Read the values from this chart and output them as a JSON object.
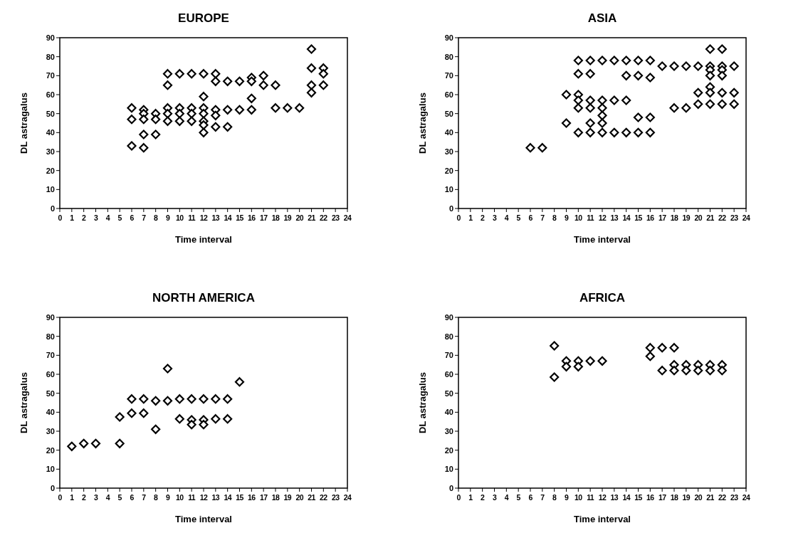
{
  "chart_data": [
    {
      "type": "scatter",
      "title": "EUROPE",
      "xlabel": "Time interval",
      "ylabel": "DL astragalus",
      "marker": "diamond",
      "xlim": [
        0,
        24
      ],
      "ylim": [
        0,
        90
      ],
      "xticks": [
        0,
        1,
        2,
        3,
        4,
        5,
        6,
        7,
        8,
        9,
        10,
        11,
        12,
        13,
        14,
        15,
        16,
        17,
        18,
        19,
        20,
        21,
        22,
        23,
        24
      ],
      "yticks": [
        0,
        10,
        20,
        30,
        40,
        50,
        60,
        70,
        80,
        90
      ],
      "series": [
        {
          "color": "#000000",
          "x": [
            6,
            6,
            6,
            7,
            7,
            7,
            7,
            7,
            8,
            8,
            8,
            9,
            9,
            9,
            9,
            9,
            10,
            10,
            10,
            10,
            11,
            11,
            11,
            11,
            12,
            12,
            12,
            12,
            12,
            12,
            12,
            13,
            13,
            13,
            13,
            13,
            14,
            14,
            14,
            15,
            15,
            16,
            16,
            16,
            16,
            17,
            17,
            18,
            18,
            19,
            20,
            21,
            21,
            21,
            21,
            22,
            22,
            22
          ],
          "values": [
            53,
            47,
            33,
            52,
            50,
            47,
            39,
            32,
            50,
            47,
            39,
            71,
            65,
            53,
            50,
            46,
            71,
            53,
            50,
            46,
            71,
            53,
            50,
            46,
            71,
            59,
            53,
            50,
            46,
            44,
            40,
            71,
            67,
            52,
            49,
            43,
            67,
            52,
            43,
            67,
            52,
            69,
            67,
            58,
            52,
            70,
            65,
            65,
            53,
            53,
            53,
            84,
            74,
            65,
            61,
            74,
            71,
            65
          ]
        }
      ]
    },
    {
      "type": "scatter",
      "title": "ASIA",
      "xlabel": "Time interval",
      "ylabel": "DL astragalus",
      "marker": "diamond",
      "xlim": [
        0,
        24
      ],
      "ylim": [
        0,
        90
      ],
      "xticks": [
        0,
        1,
        2,
        3,
        4,
        5,
        6,
        7,
        8,
        9,
        10,
        11,
        12,
        13,
        14,
        15,
        16,
        17,
        18,
        19,
        20,
        21,
        22,
        23,
        24
      ],
      "yticks": [
        0,
        10,
        20,
        30,
        40,
        50,
        60,
        70,
        80,
        90
      ],
      "series": [
        {
          "color": "#000000",
          "x": [
            6,
            7,
            9,
            9,
            10,
            10,
            10,
            10,
            10,
            10,
            11,
            11,
            11,
            11,
            11,
            11,
            12,
            12,
            12,
            12,
            12,
            12,
            13,
            13,
            13,
            14,
            14,
            14,
            14,
            15,
            15,
            15,
            15,
            16,
            16,
            16,
            16,
            17,
            18,
            18,
            19,
            19,
            20,
            20,
            20,
            21,
            21,
            21,
            21,
            21,
            21,
            21,
            22,
            22,
            22,
            22,
            22,
            22,
            23,
            23,
            23
          ],
          "values": [
            32,
            32,
            60,
            45,
            78,
            71,
            60,
            57,
            53,
            40,
            78,
            71,
            57,
            53,
            45,
            40,
            78,
            57,
            53,
            49,
            45,
            40,
            78,
            57,
            40,
            78,
            70,
            57,
            40,
            78,
            70,
            48,
            40,
            78,
            69,
            48,
            40,
            75,
            75,
            53,
            75,
            53,
            75,
            61,
            55,
            84,
            75,
            73,
            70,
            64,
            61,
            55,
            84,
            75,
            73,
            70,
            61,
            55,
            75,
            61,
            55
          ]
        }
      ]
    },
    {
      "type": "scatter",
      "title": "NORTH AMERICA",
      "xlabel": "Time interval",
      "ylabel": "DL astragalus",
      "marker": "diamond",
      "xlim": [
        0,
        24
      ],
      "ylim": [
        0,
        90
      ],
      "xticks": [
        0,
        1,
        2,
        3,
        4,
        5,
        6,
        7,
        8,
        9,
        10,
        11,
        12,
        13,
        14,
        15,
        16,
        17,
        18,
        19,
        20,
        21,
        22,
        23,
        24
      ],
      "yticks": [
        0,
        10,
        20,
        30,
        40,
        50,
        60,
        70,
        80,
        90
      ],
      "series": [
        {
          "color": "#000000",
          "x": [
            1,
            2,
            3,
            5,
            5,
            6,
            6,
            7,
            7,
            8,
            8,
            9,
            9,
            10,
            10,
            11,
            11,
            11,
            12,
            12,
            12,
            13,
            13,
            14,
            14,
            15
          ],
          "values": [
            22,
            23.5,
            23.5,
            37.5,
            23.5,
            47,
            39.5,
            47,
            39.5,
            46,
            31,
            63,
            46,
            47,
            36.5,
            47,
            36,
            33.5,
            47,
            36,
            33.5,
            47,
            36.5,
            47,
            36.5,
            56
          ]
        }
      ]
    },
    {
      "type": "scatter",
      "title": "AFRICA",
      "xlabel": "Time interval",
      "ylabel": "DL astragalus",
      "marker": "diamond",
      "xlim": [
        0,
        24
      ],
      "ylim": [
        0,
        90
      ],
      "xticks": [
        0,
        1,
        2,
        3,
        4,
        5,
        6,
        7,
        8,
        9,
        10,
        11,
        12,
        13,
        14,
        15,
        16,
        17,
        18,
        19,
        20,
        21,
        22,
        23,
        24
      ],
      "yticks": [
        0,
        10,
        20,
        30,
        40,
        50,
        60,
        70,
        80,
        90
      ],
      "series": [
        {
          "color": "#000000",
          "x": [
            8,
            8,
            9,
            9,
            10,
            10,
            11,
            12,
            16,
            16,
            17,
            17,
            18,
            18,
            18,
            19,
            19,
            20,
            20,
            21,
            21,
            22,
            22
          ],
          "values": [
            75,
            58.5,
            67,
            64,
            67,
            64,
            67,
            67,
            74,
            69.5,
            74,
            62,
            74,
            65,
            62,
            65,
            62,
            65,
            62,
            65,
            62,
            65,
            62
          ]
        }
      ]
    }
  ]
}
